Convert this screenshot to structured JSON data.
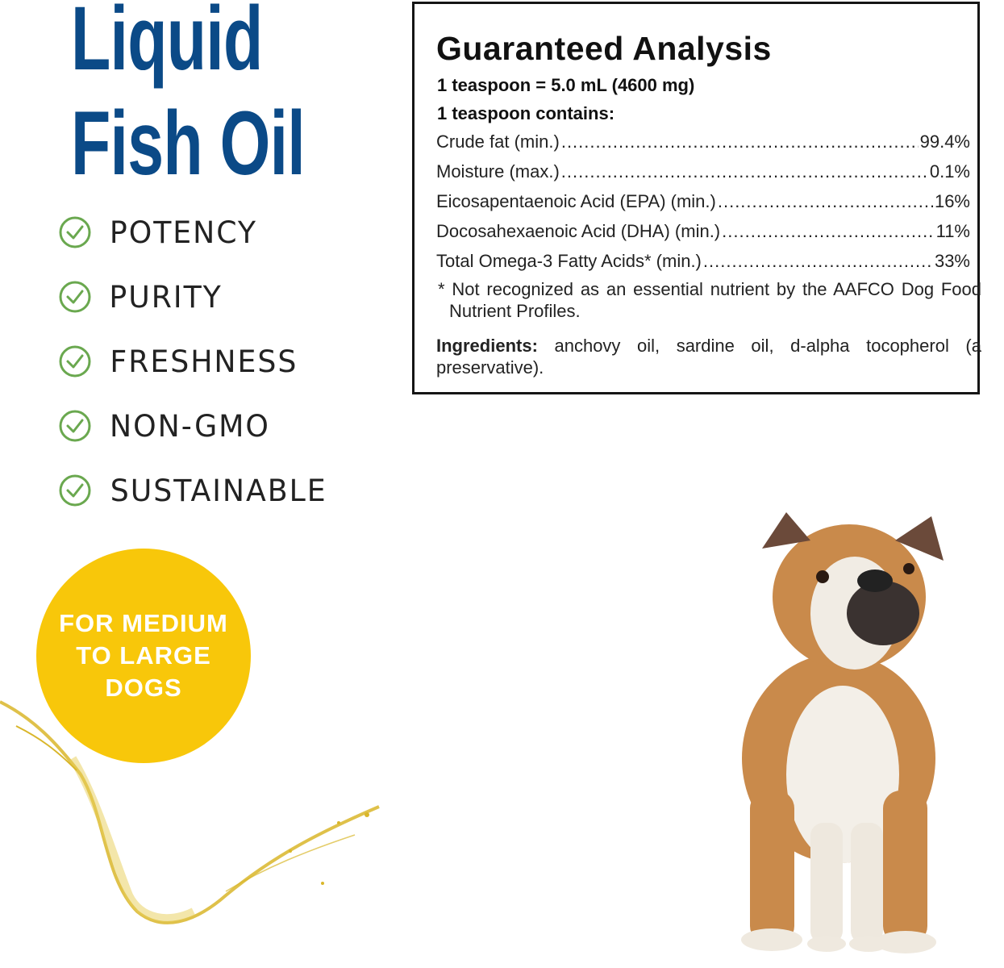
{
  "title": {
    "line1": "Liquid",
    "line2": "Fish Oil"
  },
  "features": [
    {
      "label": "POTENCY",
      "icon": "check-circle-icon"
    },
    {
      "label": "PURITY",
      "icon": "check-circle-icon"
    },
    {
      "label": "FRESHNESS",
      "icon": "check-circle-icon"
    },
    {
      "label": "NON-GMO",
      "icon": "check-circle-icon"
    },
    {
      "label": "SUSTAINABLE",
      "icon": "check-circle-icon"
    }
  ],
  "analysis": {
    "title": "Guaranteed Analysis",
    "serving": "1 teaspoon = 5.0 mL (4600 mg)",
    "contains": "1 teaspoon contains:",
    "rows": [
      {
        "label": "Crude fat (min.)",
        "value": "99.4%"
      },
      {
        "label": "Moisture (max.)",
        "value": "0.1%"
      },
      {
        "label": "Eicosapentaenoic Acid (EPA) (min.)",
        "value": "16%"
      },
      {
        "label": "Docosahexaenoic Acid (DHA) (min.)",
        "value": "11%"
      },
      {
        "label": "Total Omega-3 Fatty Acids* (min.)",
        "value": "33%"
      }
    ],
    "footnote": "* Not recognized as an essential nutrient by the AAFCO Dog Food Nutrient Profiles.",
    "ingredients_label": "Ingredients:",
    "ingredients": "anchovy oil, sardine oil, d-alpha tocopherol (a preservative)."
  },
  "badge": {
    "line1": "FOR MEDIUM",
    "line2": "TO LARGE",
    "line3": "DOGS"
  },
  "colors": {
    "title": "#0b4a87",
    "check": "#6aa84f",
    "badge": "#f8c70a",
    "oil": "#d9b62a"
  }
}
